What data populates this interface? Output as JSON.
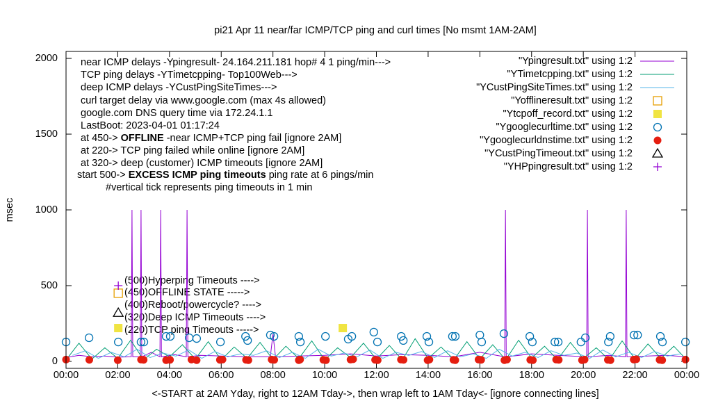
{
  "chart_data": {
    "type": "line",
    "title": "pi21 Apr 11  near/far ICMP/TCP ping and curl times [No msmt 1AM-2AM]",
    "x_label": "<-START at 2AM Yday, right to 12AM Tday->, then wrap left to 1AM Tday<- [ignore connecting lines]",
    "y_label": "msec",
    "xlim": [
      0,
      24
    ],
    "ylim": [
      -46,
      2046
    ],
    "xticks": [
      {
        "value": 0,
        "label": "00:00"
      },
      {
        "value": 2,
        "label": "02:00"
      },
      {
        "value": 4,
        "label": "04:00"
      },
      {
        "value": 6,
        "label": "06:00"
      },
      {
        "value": 8,
        "label": "08:00"
      },
      {
        "value": 10,
        "label": "10:00"
      },
      {
        "value": 12,
        "label": "12:00"
      },
      {
        "value": 14,
        "label": "14:00"
      },
      {
        "value": 16,
        "label": "16:00"
      },
      {
        "value": 18,
        "label": "18:00"
      },
      {
        "value": 20,
        "label": "20:00"
      },
      {
        "value": 22,
        "label": "22:00"
      },
      {
        "value": 24,
        "label": "00:00"
      }
    ],
    "yticks": [
      0,
      500,
      1000,
      1500,
      2000
    ],
    "info_lines": [
      [
        "near ICMP delays -Ypingresult- 24.164.211.181 hop# 4 1 ping/min--->"
      ],
      [
        "TCP ping delays -YTimetcpping- Top100Web--->"
      ],
      [
        "deep ICMP delays -YCustPingSiteTimes--->"
      ],
      [
        "curl target delay via www.google.com (max 4s allowed)"
      ],
      [
        "google.com DNS query time via 172.24.1.1"
      ],
      [
        "LastBoot: 2023-04-01 01:17:24"
      ],
      [
        "at 450-> ",
        "OFFLINE",
        " -near ICMP+TCP ping fail [ignore 2AM]"
      ],
      [
        "at 220-> TCP ping failed while online [ignore 2AM]"
      ],
      [
        "at 320-> deep (customer) ICMP timeouts [ignore 2AM]"
      ],
      [
        "start 500-> ",
        "EXCESS ICMP ping timeouts",
        "  ping rate at 6 pings/min"
      ],
      [
        "#vertical tick represents ping timeouts in 1 min"
      ]
    ],
    "marker_labels": [
      "(500)Hyperping Timeouts ---->",
      "(450)OFFLINE STATE ----->",
      "(400)Reboot/powercycle? ---->",
      "(320)Deep ICMP Timeouts ---->",
      "(220)TCP ping Timeouts ----->"
    ],
    "series": [
      {
        "name": "\"Ypingresult.txt\" using 1:2",
        "style": "line",
        "color": "#9400d3",
        "x": [
          0,
          0.5,
          1,
          1.5,
          2,
          2.52,
          2.55,
          2.58,
          2.87,
          2.9,
          2.93,
          3.3,
          3.63,
          3.66,
          3.69,
          4.2,
          4.65,
          4.68,
          4.71,
          5.2,
          6,
          7,
          7.9,
          8,
          8.1,
          9,
          10,
          11,
          12,
          13,
          14,
          15,
          16,
          16.96,
          16.99,
          17.02,
          18,
          19,
          20.13,
          20.16,
          20.19,
          21,
          21.63,
          21.66,
          21.69,
          22.5,
          23.2,
          24
        ],
        "values": [
          25,
          40,
          30,
          35,
          28,
          30,
          1000,
          30,
          30,
          1000,
          30,
          60,
          30,
          1000,
          30,
          45,
          30,
          1000,
          30,
          40,
          35,
          30,
          30,
          180,
          30,
          35,
          40,
          50,
          35,
          45,
          40,
          30,
          60,
          30,
          1000,
          30,
          50,
          40,
          30,
          1000,
          30,
          40,
          30,
          1000,
          30,
          35,
          40,
          30
        ]
      },
      {
        "name": "\"YTimetcpping.txt\" using 1:2",
        "style": "line",
        "color": "#009e73",
        "x": [
          0,
          0.5,
          1,
          1.5,
          2,
          2.5,
          3,
          3.5,
          4,
          4.5,
          5,
          5.5,
          6,
          6.5,
          7,
          7.5,
          8,
          8.5,
          9,
          9.5,
          10,
          10.5,
          11,
          11.5,
          12,
          12.5,
          13,
          13.5,
          14,
          14.5,
          15,
          15.5,
          16,
          16.5,
          17,
          17.5,
          18,
          18.5,
          19,
          19.5,
          20,
          20.5,
          21,
          21.5,
          22,
          22.5,
          23,
          23.5,
          24
        ],
        "values": [
          10,
          120,
          15,
          90,
          20,
          140,
          10,
          80,
          30,
          110,
          15,
          130,
          10,
          95,
          20,
          125,
          12,
          100,
          18,
          135,
          10,
          90,
          25,
          120,
          14,
          105,
          10,
          150,
          20,
          95,
          12,
          130,
          16,
          110,
          10,
          140,
          22,
          100,
          12,
          125,
          18,
          90,
          10,
          135,
          15,
          115,
          20,
          100,
          10
        ]
      },
      {
        "name": "\"YCustPingSiteTimes.txt\" using 1:2",
        "style": "line",
        "color": "#56b4e9",
        "x": [
          0.25,
          0.75,
          1.25,
          1.75,
          2.25,
          2.75,
          3.25,
          3.75,
          4.25,
          4.75,
          5.25,
          5.75,
          6.25,
          6.75,
          7.25,
          7.75,
          8.25,
          8.75,
          9.25,
          9.75,
          10.25,
          10.75,
          11.25,
          11.75,
          12.25,
          12.75,
          13.25,
          13.75,
          14.25,
          14.75,
          15.25,
          15.75,
          16.25,
          16.75,
          17.25,
          17.75,
          18.25,
          18.75,
          19.25,
          19.75,
          20.25,
          20.75,
          21.25,
          21.75,
          22.25,
          22.75,
          23.25,
          23.75
        ],
        "values": [
          40,
          70,
          20,
          60,
          30,
          80,
          25,
          55,
          35,
          75,
          20,
          65,
          30,
          50,
          40,
          70,
          25,
          60,
          20,
          80,
          35,
          55,
          30,
          75,
          20,
          60,
          40,
          65,
          25,
          70,
          30,
          50,
          20,
          80,
          35,
          60,
          25,
          70,
          40,
          55,
          20,
          75,
          30,
          60,
          25,
          65,
          35,
          50
        ]
      },
      {
        "name": "\"Yofflineresult.txt\" using 1:2",
        "style": "points",
        "marker": "square-open",
        "color": "#e69f00",
        "x": [
          2.02
        ],
        "values": [
          450
        ]
      },
      {
        "name": "\"Ytcpoff_record.txt\" using 1:2",
        "style": "points",
        "marker": "square",
        "color": "#f0e442",
        "x": [
          2.02,
          10.7
        ],
        "values": [
          220,
          220
        ]
      },
      {
        "name": "\"Ygooglecurltime.txt\" using 1:2",
        "style": "points",
        "marker": "circle-open",
        "color": "#0072b2",
        "x": [
          0,
          0.89,
          2.02,
          2.9,
          3.01,
          3.87,
          4.03,
          4.76,
          5.05,
          5.97,
          6.94,
          7.02,
          7.9,
          8.04,
          9.0,
          9.06,
          10.03,
          10.91,
          11.05,
          11.9,
          12.04,
          12.96,
          13.04,
          13.95,
          14.03,
          14.94,
          15.05,
          16.0,
          16.07,
          16.93,
          17.93,
          18.03,
          18.9,
          19.03,
          19.91,
          20.08,
          20.97,
          21.04,
          21.96,
          22.1,
          22.98,
          23.06,
          23.95
        ],
        "values": [
          128,
          156,
          128,
          128,
          128,
          165,
          165,
          156,
          151,
          128,
          165,
          138,
          174,
          165,
          165,
          128,
          165,
          147,
          165,
          193,
          128,
          165,
          138,
          165,
          128,
          165,
          165,
          174,
          128,
          183,
          165,
          128,
          128,
          128,
          128,
          156,
          128,
          165,
          174,
          174,
          165,
          128,
          128
        ]
      },
      {
        "name": "\"Ygooglecurldnstime.txt\" using 1:2",
        "style": "points",
        "marker": "circle",
        "color": "#e51e10",
        "x": [
          0,
          0.9,
          2.0,
          2.9,
          3.0,
          3.87,
          4.02,
          4.85,
          5.05,
          5.95,
          6.05,
          6.96,
          7.05,
          7.95,
          8.05,
          9.0,
          9.05,
          9.95,
          10.05,
          11.0,
          11.1,
          11.95,
          12.05,
          12.95,
          13.05,
          13.98,
          14.05,
          14.98,
          15.05,
          15.95,
          16.05,
          16.95,
          17.05,
          17.95,
          18.05,
          18.95,
          19.05,
          19.95,
          20.05,
          20.95,
          21.05,
          21.95,
          22.05,
          22.95,
          23.05,
          23.95
        ],
        "values": [
          12,
          10,
          8,
          12,
          10,
          8,
          10,
          12,
          8,
          10,
          12,
          10,
          8,
          12,
          10,
          8,
          12,
          10,
          8,
          12,
          14,
          10,
          8,
          12,
          10,
          8,
          12,
          10,
          8,
          12,
          10,
          8,
          12,
          10,
          8,
          12,
          10,
          8,
          12,
          10,
          8,
          12,
          14,
          10,
          8,
          12
        ]
      },
      {
        "name": "\"YCustPingTimeout.txt\" using 1:2",
        "style": "points",
        "marker": "triangle-open",
        "color": "#000000",
        "x": [
          2.02
        ],
        "values": [
          320
        ]
      },
      {
        "name": "\"YHPpingresult.txt\" using 1:2",
        "style": "points",
        "marker": "plus",
        "color": "#9400d3",
        "x": [
          2.02
        ],
        "values": [
          500
        ]
      }
    ]
  }
}
